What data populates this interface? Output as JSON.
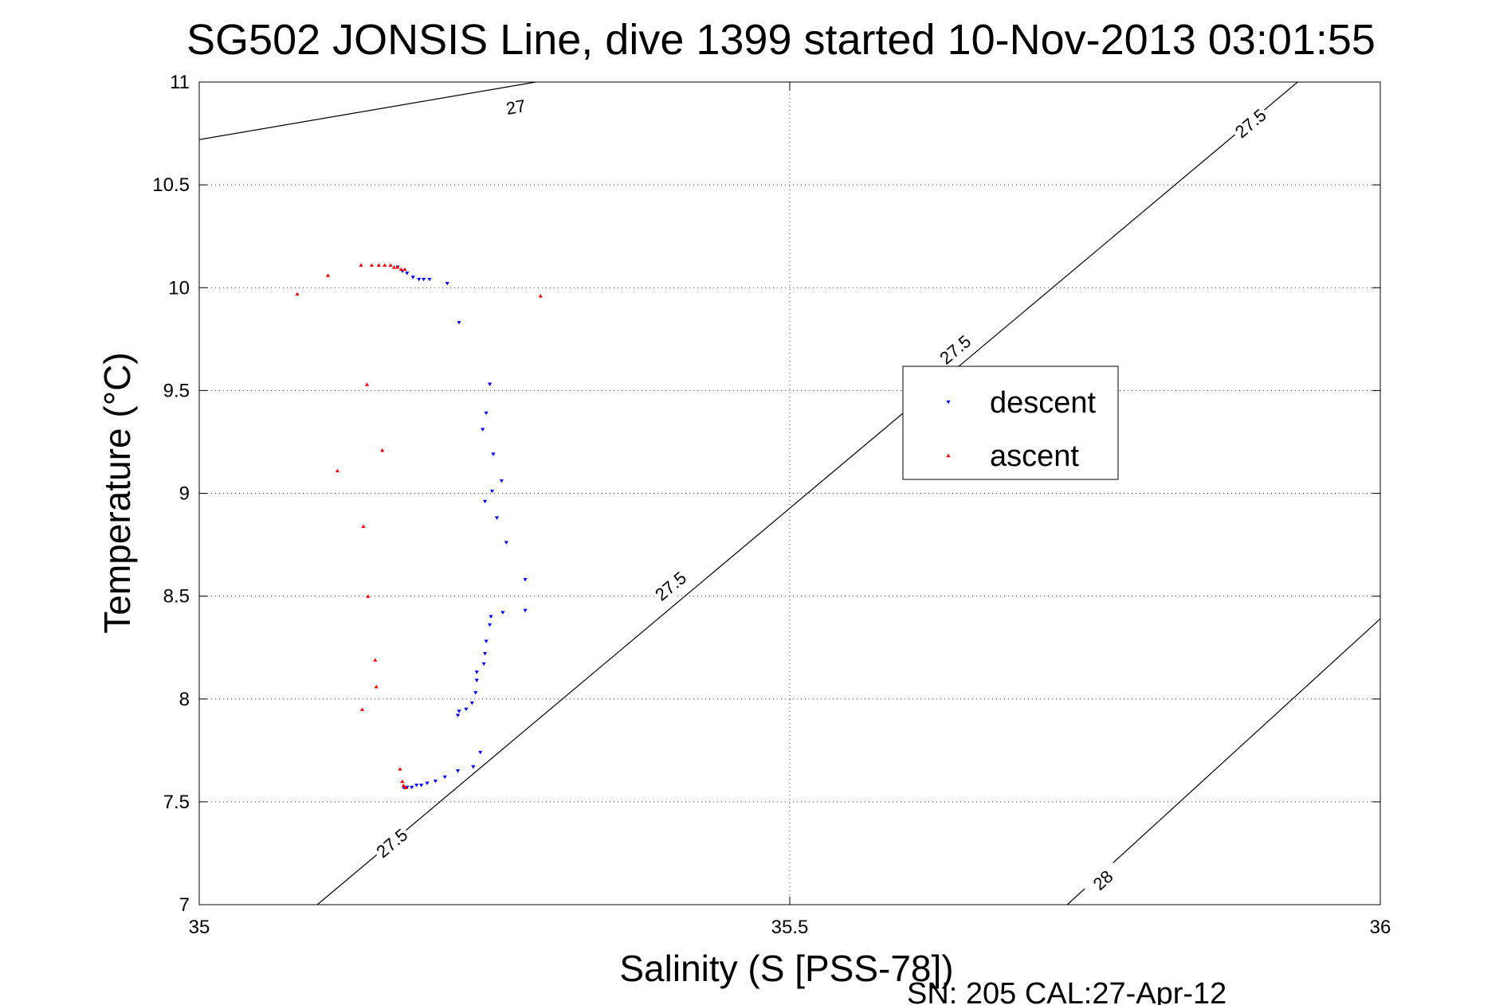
{
  "chart_data": {
    "type": "scatter",
    "title": "SG502 JONSIS Line, dive 1399 started 10-Nov-2013 03:01:55",
    "xlabel": "Salinity (S [PSS-78])",
    "ylabel": "Temperature (°C)",
    "footer": "SN: 205  CAL:27-Apr-12",
    "xlim": [
      35,
      36
    ],
    "ylim": [
      7,
      11
    ],
    "x_ticks": [
      "35",
      "35.5",
      "36"
    ],
    "y_ticks": [
      "7",
      "7.5",
      "8",
      "8.5",
      "9",
      "9.5",
      "10",
      "10.5",
      "11"
    ],
    "grid": true,
    "legend_position": "center-right",
    "series": [
      {
        "name": "descent",
        "color": "#0000ff",
        "marker": "triangle-down",
        "points": [
          [
            35.168,
            10.1
          ],
          [
            35.172,
            10.08
          ],
          [
            35.176,
            10.07
          ],
          [
            35.181,
            10.05
          ],
          [
            35.186,
            10.04
          ],
          [
            35.19,
            10.04
          ],
          [
            35.195,
            10.04
          ],
          [
            35.21,
            10.02
          ],
          [
            35.22,
            9.83
          ],
          [
            35.246,
            9.53
          ],
          [
            35.243,
            9.39
          ],
          [
            35.24,
            9.31
          ],
          [
            35.249,
            9.19
          ],
          [
            35.256,
            9.06
          ],
          [
            35.248,
            9.01
          ],
          [
            35.242,
            8.96
          ],
          [
            35.252,
            8.88
          ],
          [
            35.26,
            8.76
          ],
          [
            35.276,
            8.58
          ],
          [
            35.276,
            8.43
          ],
          [
            35.257,
            8.42
          ],
          [
            35.247,
            8.4
          ],
          [
            35.246,
            8.36
          ],
          [
            35.243,
            8.28
          ],
          [
            35.242,
            8.22
          ],
          [
            35.241,
            8.17
          ],
          [
            35.235,
            8.13
          ],
          [
            35.235,
            8.09
          ],
          [
            35.234,
            8.03
          ],
          [
            35.231,
            7.98
          ],
          [
            35.226,
            7.95
          ],
          [
            35.22,
            7.94
          ],
          [
            35.219,
            7.92
          ],
          [
            35.238,
            7.74
          ],
          [
            35.232,
            7.67
          ],
          [
            35.219,
            7.65
          ],
          [
            35.208,
            7.62
          ],
          [
            35.2,
            7.6
          ],
          [
            35.193,
            7.59
          ],
          [
            35.188,
            7.58
          ],
          [
            35.184,
            7.58
          ],
          [
            35.18,
            7.57
          ],
          [
            35.176,
            7.57
          ],
          [
            35.173,
            7.57
          ]
        ]
      },
      {
        "name": "ascent",
        "color": "#ff0000",
        "marker": "triangle-up",
        "points": [
          [
            35.083,
            9.97
          ],
          [
            35.109,
            10.06
          ],
          [
            35.137,
            10.11
          ],
          [
            35.146,
            10.11
          ],
          [
            35.152,
            10.11
          ],
          [
            35.157,
            10.11
          ],
          [
            35.162,
            10.11
          ],
          [
            35.165,
            10.1
          ],
          [
            35.168,
            10.1
          ],
          [
            35.171,
            10.09
          ],
          [
            35.174,
            10.09
          ],
          [
            35.289,
            9.96
          ],
          [
            35.142,
            9.53
          ],
          [
            35.155,
            9.21
          ],
          [
            35.117,
            9.11
          ],
          [
            35.139,
            8.84
          ],
          [
            35.143,
            8.5
          ],
          [
            35.149,
            8.19
          ],
          [
            35.15,
            8.06
          ],
          [
            35.138,
            7.95
          ],
          [
            35.17,
            7.66
          ],
          [
            35.172,
            7.6
          ],
          [
            35.173,
            7.58
          ],
          [
            35.175,
            7.57
          ]
        ]
      }
    ],
    "contours": [
      {
        "label": "27",
        "points": [
          [
            35,
            10.72
          ],
          [
            35.285,
            11.0
          ]
        ],
        "labels_at": [
          [
            35.268,
            10.88
          ]
        ]
      },
      {
        "label": "27.5",
        "points": [
          [
            35.1,
            7.0
          ],
          [
            35.93,
            11.0
          ]
        ],
        "labels_at": [
          [
            35.163,
            7.3
          ],
          [
            35.399,
            8.55
          ],
          [
            35.64,
            9.7
          ],
          [
            35.89,
            10.8
          ]
        ]
      },
      {
        "label": "28",
        "points": [
          [
            35.735,
            7.0
          ],
          [
            36.0,
            8.39
          ]
        ],
        "labels_at": [
          [
            35.765,
            7.12
          ]
        ]
      }
    ]
  }
}
